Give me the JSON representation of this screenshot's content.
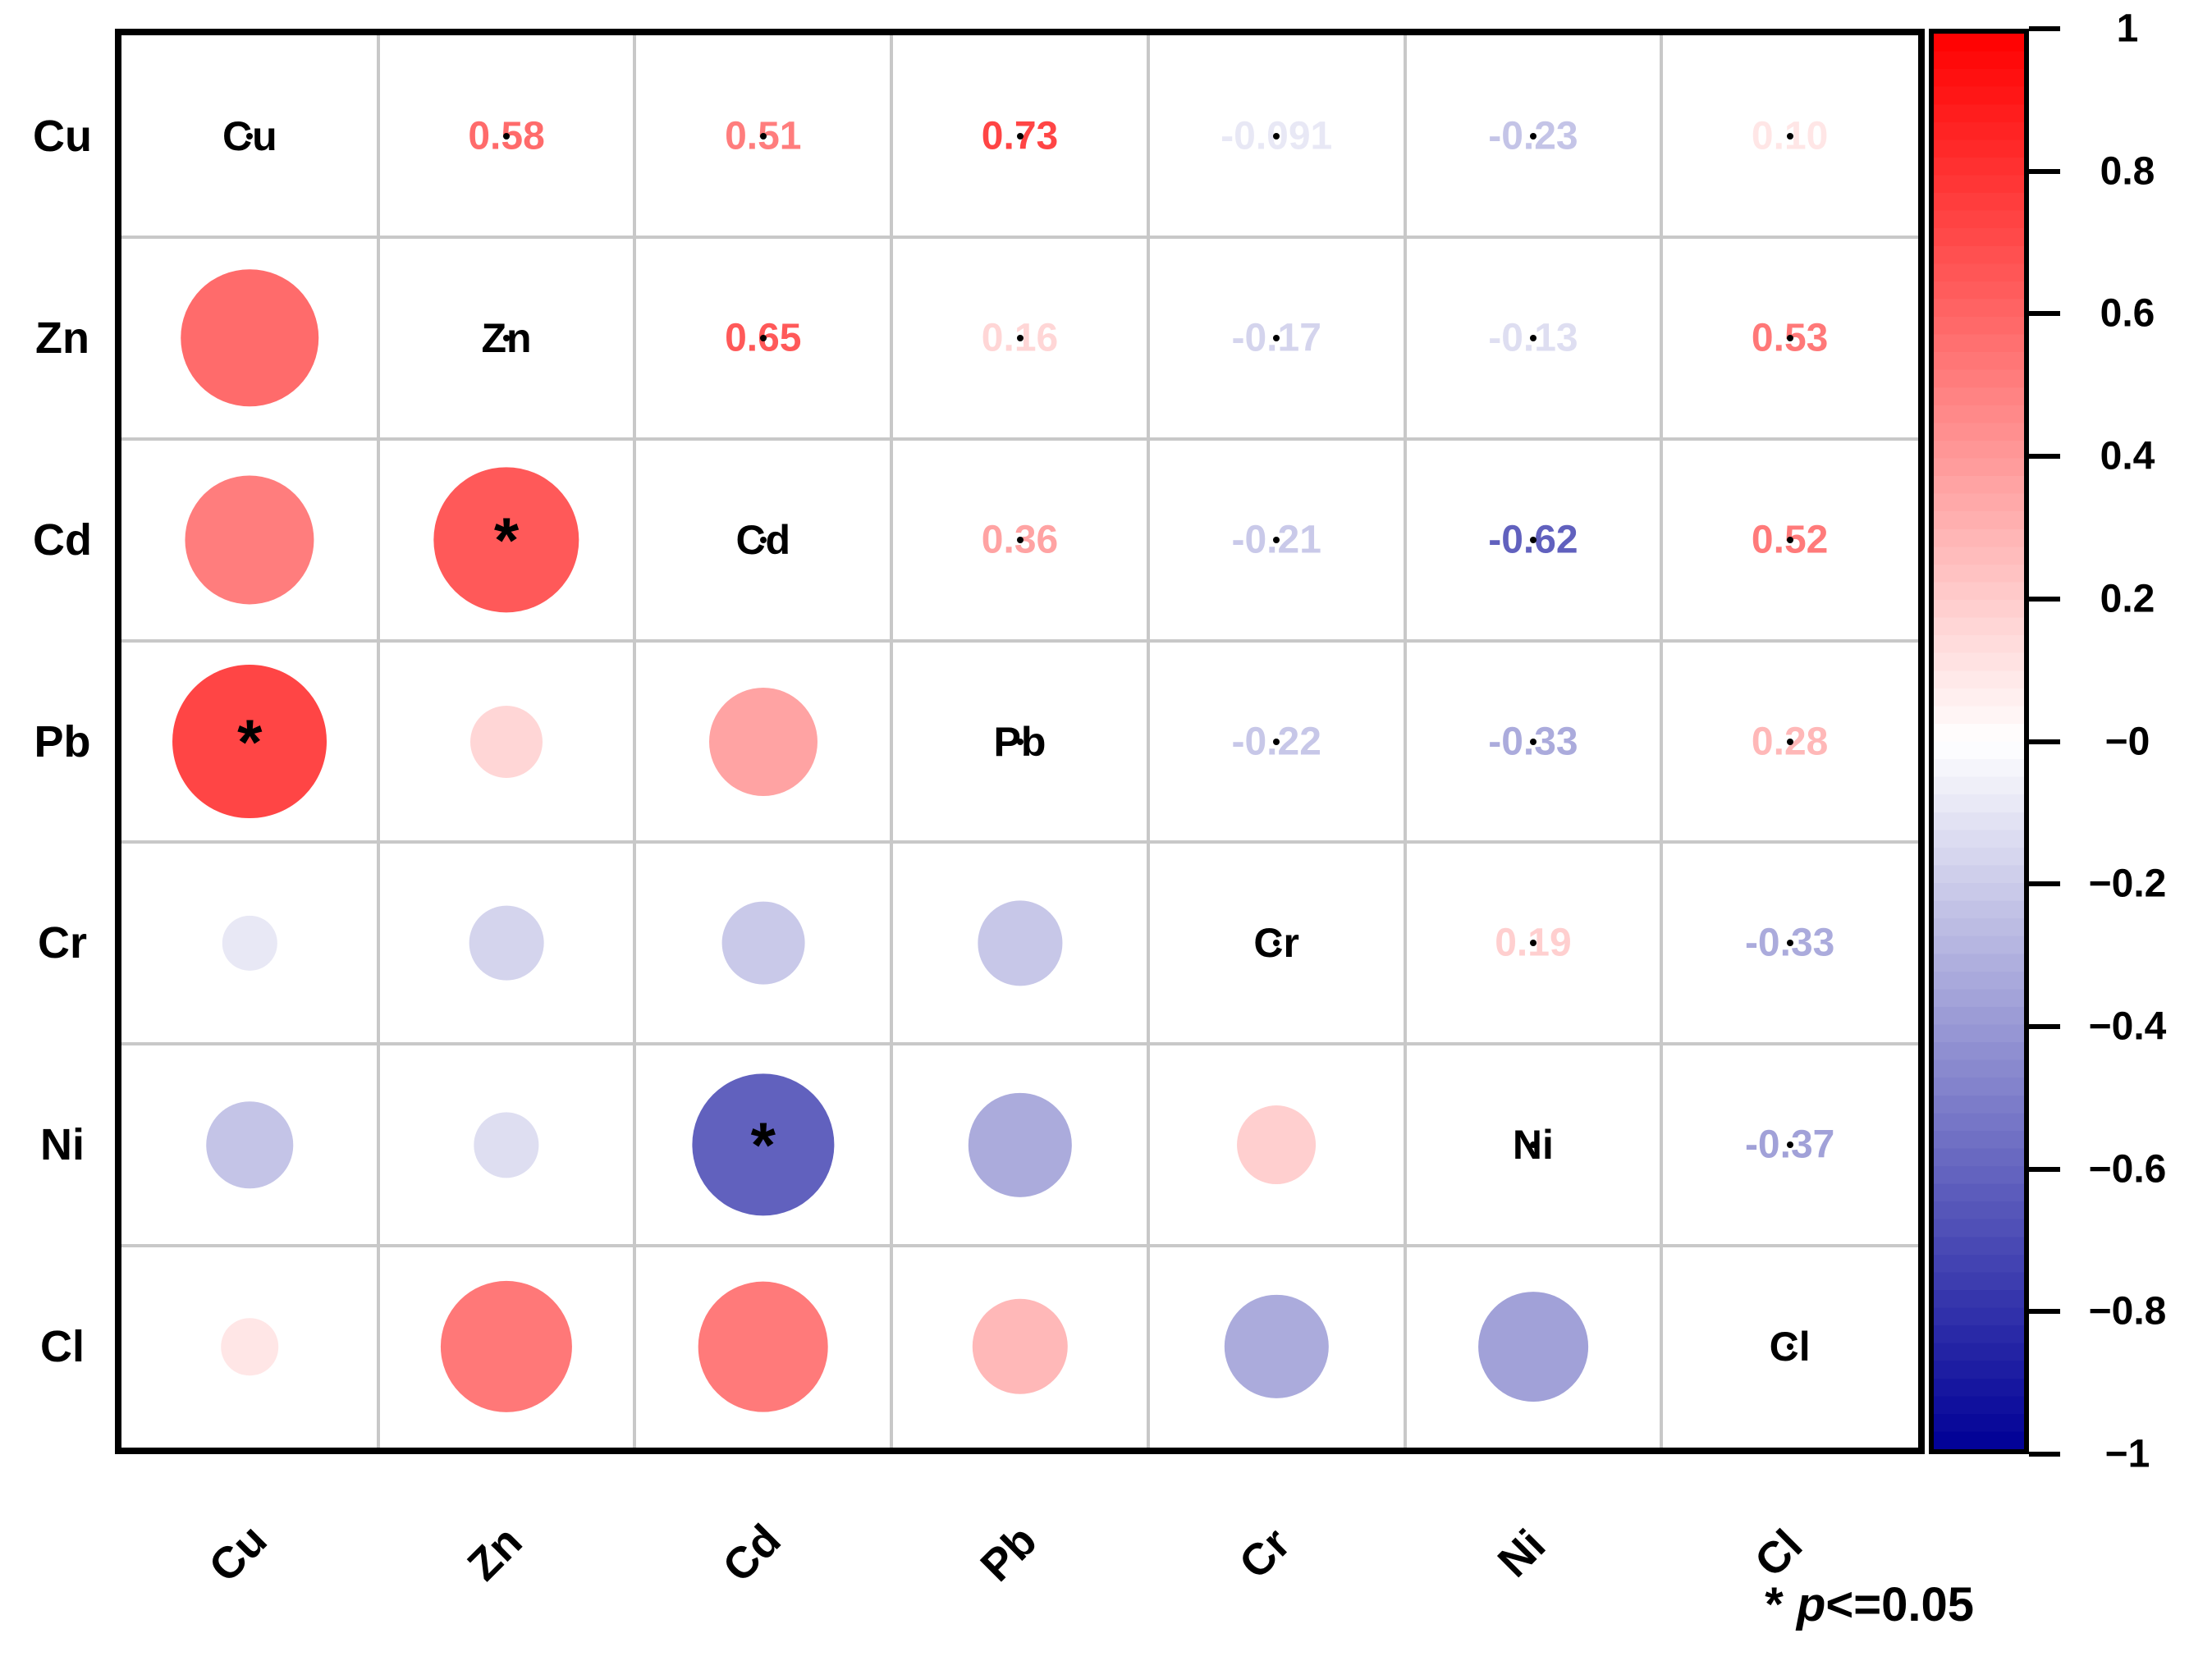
{
  "chart_data": {
    "type": "heatmap",
    "subtype": "correlation-matrix-corrplot",
    "title": "",
    "variables": [
      "Cu",
      "Zn",
      "Cd",
      "Pb",
      "Cr",
      "Ni",
      "Cl"
    ],
    "upper_triangle_labels": [
      [
        "",
        "0.58",
        "0.51",
        "0.73",
        "-0.091",
        "-0.23",
        "0.10"
      ],
      [
        "",
        "",
        "0.65",
        "0.16",
        "-0.17",
        "-0.13",
        "0.53"
      ],
      [
        "",
        "",
        "",
        "0.36",
        "-0.21",
        "-0.62",
        "0.52"
      ],
      [
        "",
        "",
        "",
        "",
        "-0.22",
        "-0.33",
        "0.28"
      ],
      [
        "",
        "",
        "",
        "",
        "",
        "0.19",
        "-0.33"
      ],
      [
        "",
        "",
        "",
        "",
        "",
        "",
        "-0.37"
      ],
      [
        "",
        "",
        "",
        "",
        "",
        "",
        ""
      ]
    ],
    "significant_cells": [
      {
        "row": "Pb",
        "col": "Cu",
        "value": 0.73
      },
      {
        "row": "Cd",
        "col": "Zn",
        "value": 0.65
      },
      {
        "row": "Ni",
        "col": "Cd",
        "value": -0.62
      }
    ],
    "significance_note": {
      "star": "*",
      "p_symbol": "p",
      "condition": "<=0.05"
    },
    "colorbar": {
      "position": "right",
      "range": [
        -1,
        1
      ],
      "tick_labels": [
        "1",
        "0.8",
        "0.6",
        "0.4",
        "0.2",
        "−0",
        "−0.2",
        "−0.4",
        "−0.6",
        "−0.8",
        "−1"
      ],
      "max_color": "#FF0000",
      "mid_color": "#FFFFFF",
      "min_color": "#000096"
    },
    "grid": true,
    "grid_color": "#C8C8C8",
    "layout_hint": "diagonal shows variable names; upper triangle shows coefficients; lower triangle shows circles sized and colored by correlation"
  }
}
